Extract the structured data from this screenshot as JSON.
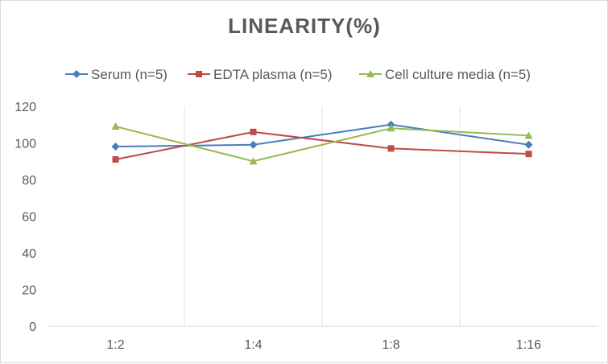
{
  "chart_data": {
    "type": "line",
    "title": "LINEARITY(%)",
    "categories": [
      "1:2",
      "1:4",
      "1:8",
      "1:16"
    ],
    "ylim": [
      0,
      120
    ],
    "yticks": [
      0,
      20,
      40,
      60,
      80,
      100,
      120
    ],
    "grid": "vertical category dividers",
    "legend_position": "top",
    "series": [
      {
        "name": "Serum (n=5)",
        "color": "#4a7ebb",
        "marker": "diamond",
        "values": [
          98,
          99,
          110,
          99
        ]
      },
      {
        "name": "EDTA plasma (n=5)",
        "color": "#be4b48",
        "marker": "square",
        "values": [
          91,
          106,
          97,
          94
        ]
      },
      {
        "name": "Cell culture media (n=5)",
        "color": "#98b954",
        "marker": "triangle",
        "values": [
          109,
          90,
          108,
          104
        ]
      }
    ]
  }
}
